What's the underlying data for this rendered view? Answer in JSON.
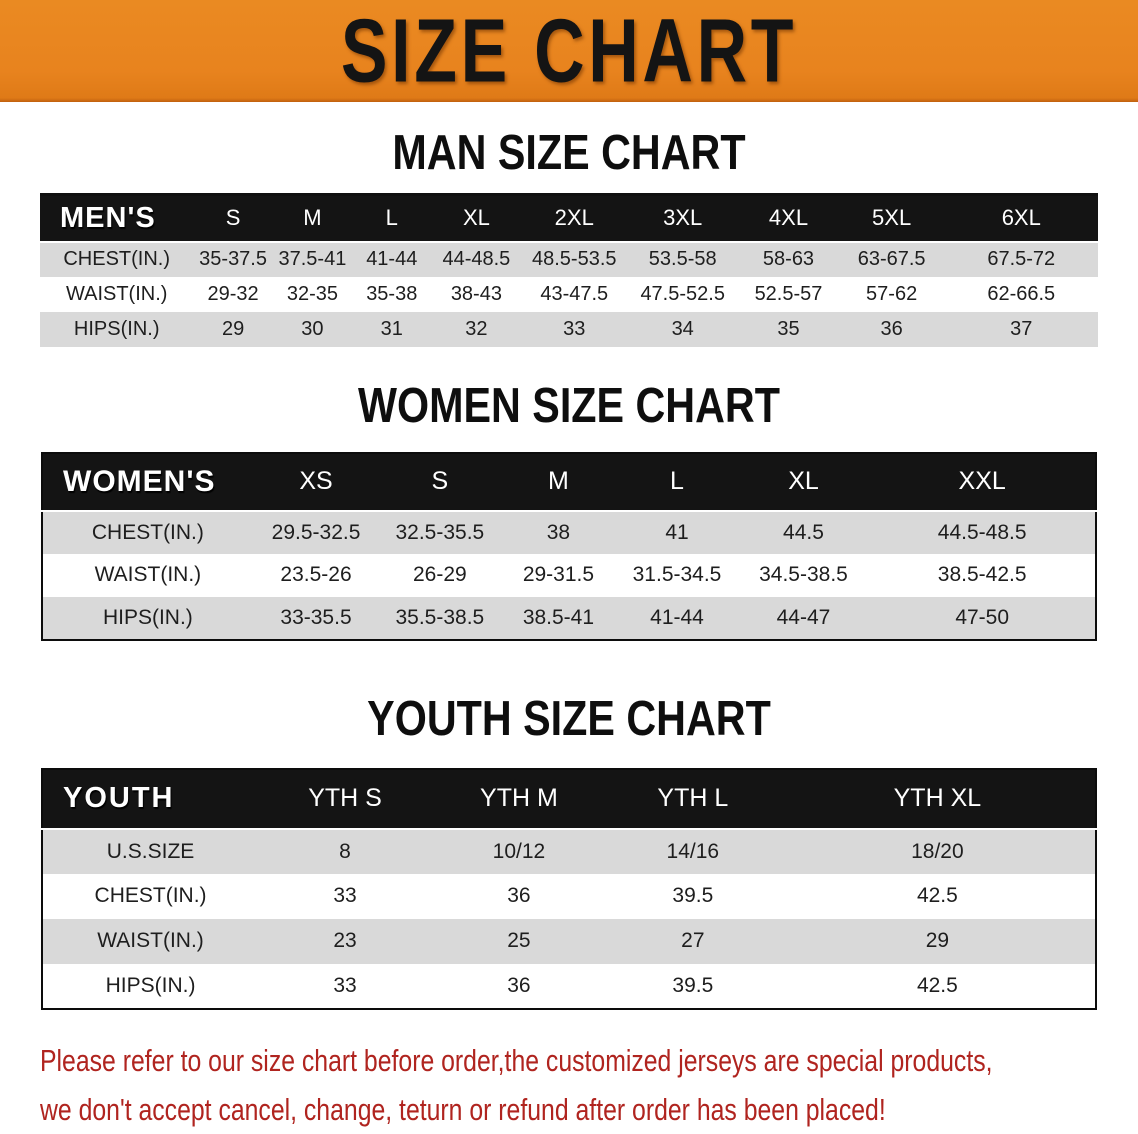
{
  "banner": {
    "title": "SIZE CHART",
    "bg_color": "#E8831E"
  },
  "men": {
    "title": "MAN SIZE CHART",
    "columns": [
      "MEN'S",
      "S",
      "M",
      "L",
      "XL",
      "2XL",
      "3XL",
      "4XL",
      "5XL",
      "6XL"
    ],
    "rows": [
      {
        "label": "CHEST(IN.)",
        "values": [
          "35-37.5",
          "37.5-41",
          "41-44",
          "44-48.5",
          "48.5-53.5",
          "53.5-58",
          "58-63",
          "63-67.5",
          "67.5-72"
        ]
      },
      {
        "label": "WAIST(IN.)",
        "values": [
          "29-32",
          "32-35",
          "35-38",
          "38-43",
          "43-47.5",
          "47.5-52.5",
          "52.5-57",
          "57-62",
          "62-66.5"
        ]
      },
      {
        "label": "HIPS(IN.)",
        "values": [
          "29",
          "30",
          "31",
          "32",
          "33",
          "34",
          "35",
          "36",
          "37"
        ]
      }
    ]
  },
  "women": {
    "title": "WOMEN SIZE CHART",
    "columns": [
      "WOMEN'S",
      "XS",
      "S",
      "M",
      "L",
      "XL",
      "XXL"
    ],
    "rows": [
      {
        "label": "CHEST(IN.)",
        "values": [
          "29.5-32.5",
          "32.5-35.5",
          "38",
          "41",
          "44.5",
          "44.5-48.5"
        ]
      },
      {
        "label": "WAIST(IN.)",
        "values": [
          "23.5-26",
          "26-29",
          "29-31.5",
          "31.5-34.5",
          "34.5-38.5",
          "38.5-42.5"
        ]
      },
      {
        "label": "HIPS(IN.)",
        "values": [
          "33-35.5",
          "35.5-38.5",
          "38.5-41",
          "41-44",
          "44-47",
          "47-50"
        ]
      }
    ]
  },
  "youth": {
    "title": "YOUTH SIZE CHART",
    "columns": [
      "YOUTH",
      "YTH S",
      "YTH M",
      "YTH L",
      "YTH XL"
    ],
    "rows": [
      {
        "label": "U.S.SIZE",
        "values": [
          "8",
          "10/12",
          "14/16",
          "18/20"
        ]
      },
      {
        "label": "CHEST(IN.)",
        "values": [
          "33",
          "36",
          "39.5",
          "42.5"
        ]
      },
      {
        "label": "WAIST(IN.)",
        "values": [
          "23",
          "25",
          "27",
          "29"
        ]
      },
      {
        "label": "HIPS(IN.)",
        "values": [
          "33",
          "36",
          "39.5",
          "42.5"
        ]
      }
    ]
  },
  "footer": {
    "line1": "Please refer to our size chart before order,the customized jerseys are special products,",
    "line2": "we don't accept cancel, change, teturn or refund after order has been placed!",
    "text_color": "#B0241F"
  }
}
